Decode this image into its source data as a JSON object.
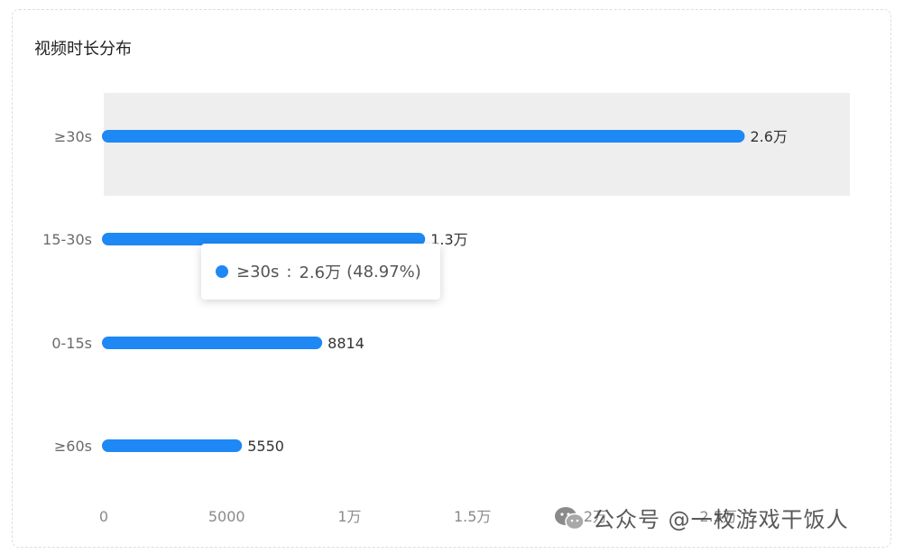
{
  "title": "视频时长分布",
  "chart_data": {
    "type": "bar",
    "orientation": "horizontal",
    "categories": [
      "≥30s",
      "15-30s",
      "0-15s",
      "≥60s"
    ],
    "values": [
      26000,
      13000,
      8814,
      5550
    ],
    "value_labels": [
      "2.6万",
      "1.3万",
      "8814",
      "5550"
    ],
    "x_ticks": [
      {
        "value": 0,
        "label": "0"
      },
      {
        "value": 5000,
        "label": "5000"
      },
      {
        "value": 10000,
        "label": "1万"
      },
      {
        "value": 15000,
        "label": "1.5万"
      },
      {
        "value": 20000,
        "label": "2万"
      },
      {
        "value": 25000,
        "label": "2.5万"
      }
    ],
    "xlim": [
      0,
      30000
    ],
    "highlighted_category": "≥30s",
    "bar_color": "#1e88f5",
    "highlight_band_color": "#eeeeee",
    "grid": false,
    "legend": "none"
  },
  "tooltip": {
    "category": "≥30s",
    "separator": ":",
    "value": "2.6万",
    "percent": "(48.97%)",
    "color": "#1e88f5"
  },
  "watermark": {
    "icon": "wechat-icon",
    "text": "公众号 @一枚游戏干饭人"
  }
}
